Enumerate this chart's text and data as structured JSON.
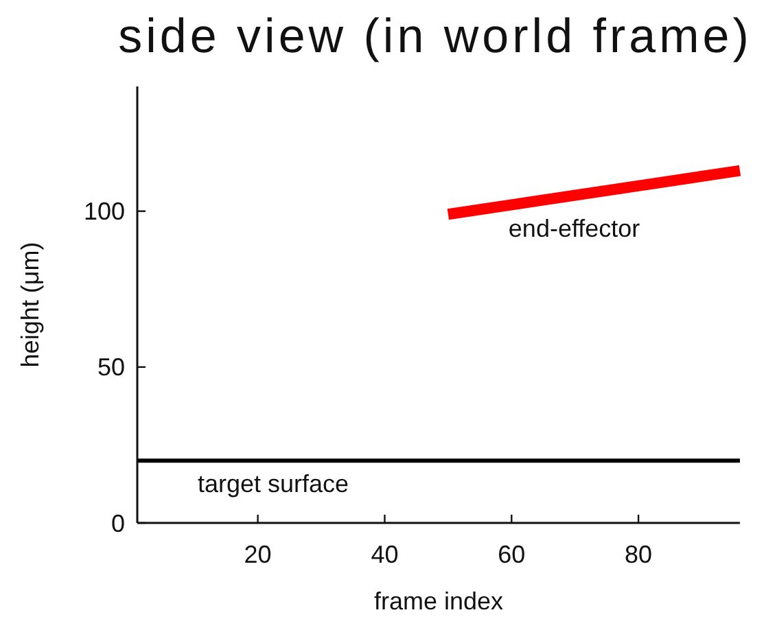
{
  "chart_data": {
    "type": "line",
    "title": "side view (in world frame)",
    "xlabel": "frame index",
    "ylabel": "height (μm)",
    "xlim": [
      1,
      96
    ],
    "xticks": [
      20,
      40,
      60,
      80
    ],
    "ylim": [
      0,
      140
    ],
    "yticks": [
      0,
      50,
      100
    ],
    "series": [
      {
        "name": "end-effector",
        "color": "#ff0000",
        "x": [
          50,
          96
        ],
        "values": [
          99,
          113
        ]
      },
      {
        "name": "target surface",
        "color": "#000000",
        "x": [
          1,
          96
        ],
        "values": [
          20,
          20
        ]
      }
    ],
    "marker": "none",
    "line_style": "solid"
  }
}
